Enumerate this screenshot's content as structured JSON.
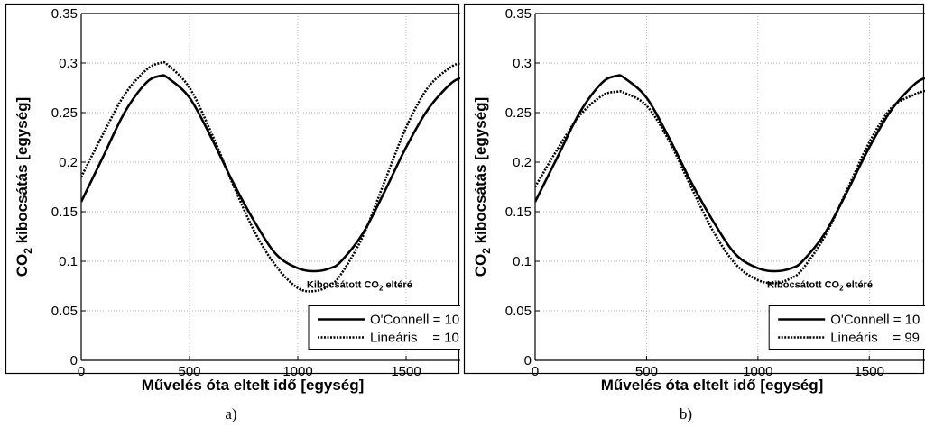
{
  "chart_data": [
    {
      "type": "line",
      "caption": "a)",
      "xlabel": "Művelés óta eltelt idő [egység]",
      "ylabel_main": "CO",
      "ylabel_sub": "2",
      "ylabel_rest": " kibocsátás [egység]",
      "xlim": [
        0,
        1750
      ],
      "ylim": [
        0,
        0.35
      ],
      "xticks": [
        0,
        500,
        1000,
        1500
      ],
      "yticks": [
        0,
        0.05,
        0.1,
        0.15,
        0.2,
        0.25,
        0.3,
        0.35
      ],
      "grid": true,
      "legend_position": "bottom-right",
      "annotation": {
        "prefix": "Kibocsátott CO",
        "sub": "2",
        "suffix": " eltéré"
      },
      "series": [
        {
          "name": "O'Connell",
          "legend_text": "O'Connell = 10",
          "style": "solid",
          "x": [
            0,
            100,
            200,
            300,
            365,
            400,
            500,
            600,
            700,
            800,
            900,
            1000,
            1080,
            1150,
            1200,
            1300,
            1400,
            1500,
            1600,
            1700,
            1750
          ],
          "y": [
            0.16,
            0.205,
            0.25,
            0.28,
            0.287,
            0.285,
            0.265,
            0.225,
            0.18,
            0.14,
            0.107,
            0.093,
            0.09,
            0.093,
            0.1,
            0.128,
            0.17,
            0.215,
            0.253,
            0.278,
            0.285
          ]
        },
        {
          "name": "Lineáris",
          "legend_text": "Lineáris    = 10",
          "style": "dotted",
          "x": [
            0,
            100,
            200,
            300,
            365,
            400,
            500,
            600,
            700,
            800,
            900,
            1000,
            1080,
            1150,
            1200,
            1300,
            1400,
            1500,
            1600,
            1700,
            1750
          ],
          "y": [
            0.185,
            0.228,
            0.268,
            0.293,
            0.3,
            0.298,
            0.275,
            0.23,
            0.178,
            0.13,
            0.095,
            0.073,
            0.07,
            0.076,
            0.087,
            0.125,
            0.18,
            0.235,
            0.275,
            0.295,
            0.3
          ]
        }
      ]
    },
    {
      "type": "line",
      "caption": "b)",
      "xlabel": "Művelés óta eltelt idő [egység]",
      "ylabel_main": "CO",
      "ylabel_sub": "2",
      "ylabel_rest": " kibocsátás [egység]",
      "xlim": [
        0,
        1750
      ],
      "ylim": [
        0,
        0.35
      ],
      "xticks": [
        0,
        500,
        1000,
        1500
      ],
      "yticks": [
        0,
        0.05,
        0.1,
        0.15,
        0.2,
        0.25,
        0.3,
        0.35
      ],
      "grid": true,
      "legend_position": "bottom-right",
      "annotation": {
        "prefix": "Kibocsátott CO",
        "sub": "2",
        "suffix": " eltéré"
      },
      "series": [
        {
          "name": "O'Connell",
          "legend_text": "O'Connell = 10",
          "style": "solid",
          "x": [
            0,
            100,
            200,
            300,
            365,
            400,
            500,
            600,
            700,
            800,
            900,
            1000,
            1080,
            1150,
            1200,
            1300,
            1400,
            1500,
            1600,
            1700,
            1750
          ],
          "y": [
            0.16,
            0.205,
            0.25,
            0.28,
            0.287,
            0.285,
            0.265,
            0.225,
            0.18,
            0.14,
            0.107,
            0.093,
            0.09,
            0.093,
            0.1,
            0.128,
            0.17,
            0.215,
            0.253,
            0.278,
            0.285
          ]
        },
        {
          "name": "Lineáris",
          "legend_text": "Lineáris    = 99",
          "style": "dotted",
          "x": [
            0,
            100,
            200,
            300,
            365,
            400,
            500,
            600,
            700,
            800,
            900,
            1000,
            1080,
            1150,
            1200,
            1300,
            1400,
            1500,
            1600,
            1700,
            1750
          ],
          "y": [
            0.175,
            0.213,
            0.247,
            0.267,
            0.271,
            0.27,
            0.257,
            0.222,
            0.175,
            0.13,
            0.097,
            0.081,
            0.078,
            0.083,
            0.092,
            0.125,
            0.172,
            0.22,
            0.255,
            0.268,
            0.272
          ]
        }
      ]
    }
  ]
}
